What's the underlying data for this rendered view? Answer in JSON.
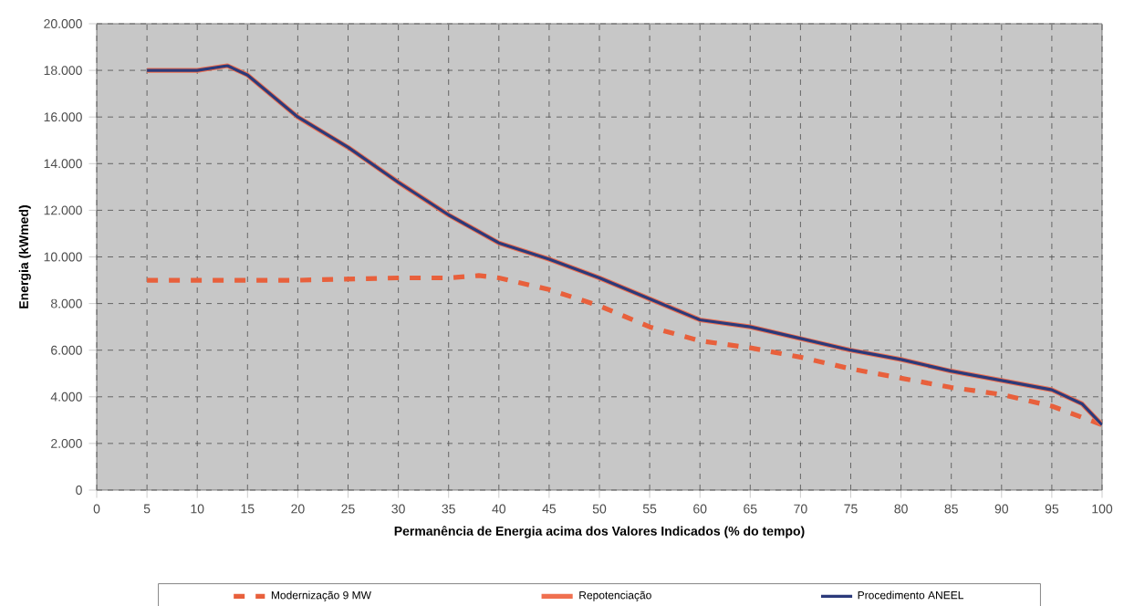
{
  "chart_data": {
    "type": "line",
    "xlabel": "Permanência de Energia acima dos Valores Indicados (% do tempo)",
    "ylabel": "Energia (kWmed)",
    "xlim": [
      0,
      100
    ],
    "xticks": [
      0,
      5,
      10,
      15,
      20,
      25,
      30,
      35,
      40,
      45,
      50,
      55,
      60,
      65,
      70,
      75,
      80,
      85,
      90,
      95,
      100
    ],
    "ylim": [
      0,
      20000
    ],
    "yticks": [
      {
        "value": 0,
        "label": "0"
      },
      {
        "value": 2000,
        "label": "2.000"
      },
      {
        "value": 4000,
        "label": "4.000"
      },
      {
        "value": 6000,
        "label": "6.000"
      },
      {
        "value": 8000,
        "label": "8.000"
      },
      {
        "value": 10000,
        "label": "10.000"
      },
      {
        "value": 12000,
        "label": "12.000"
      },
      {
        "value": 14000,
        "label": "14.000"
      },
      {
        "value": 16000,
        "label": "16.000"
      },
      {
        "value": 18000,
        "label": "18.000"
      },
      {
        "value": 20000,
        "label": "20.000"
      }
    ],
    "grid": true,
    "legend": "bottom",
    "marker": "none",
    "series": [
      {
        "name": "Modernização 9 MW",
        "color": "#e8603c",
        "line_style": "dashed",
        "x": [
          5,
          10,
          15,
          20,
          25,
          30,
          35,
          38,
          40,
          45,
          50,
          55,
          60,
          65,
          70,
          75,
          80,
          85,
          90,
          95,
          100
        ],
        "values": [
          9000,
          9000,
          9000,
          9000,
          9050,
          9100,
          9100,
          9200,
          9100,
          8600,
          7900,
          7000,
          6400,
          6100,
          5700,
          5200,
          4800,
          4400,
          4100,
          3600,
          2800
        ]
      },
      {
        "name": "Repotenciação",
        "color": "#f07050",
        "line_style": "solid",
        "x": [
          5,
          10,
          13,
          15,
          20,
          25,
          30,
          35,
          40,
          45,
          50,
          55,
          60,
          65,
          70,
          75,
          80,
          85,
          90,
          95,
          98,
          100
        ],
        "values": [
          18000,
          18000,
          18200,
          17800,
          16000,
          14700,
          13200,
          11800,
          10600,
          9900,
          9100,
          8200,
          7300,
          7000,
          6500,
          6000,
          5600,
          5100,
          4700,
          4300,
          3700,
          2800
        ]
      },
      {
        "name": "Procedimento ANEEL",
        "color": "#2b3a7a",
        "line_style": "solid",
        "x": [
          5,
          10,
          13,
          15,
          20,
          25,
          30,
          35,
          40,
          45,
          50,
          55,
          60,
          65,
          70,
          75,
          80,
          85,
          90,
          95,
          98,
          100
        ],
        "values": [
          18000,
          18000,
          18200,
          17800,
          16000,
          14700,
          13200,
          11800,
          10600,
          9900,
          9100,
          8200,
          7300,
          7000,
          6500,
          6000,
          5600,
          5100,
          4700,
          4300,
          3700,
          2800
        ]
      }
    ]
  }
}
